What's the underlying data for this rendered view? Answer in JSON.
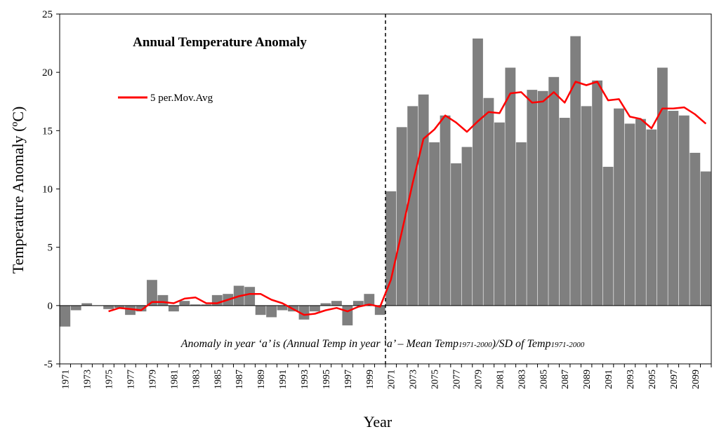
{
  "chart_data": {
    "type": "bar",
    "title": "Annual Temperature Anomaly",
    "xlabel": "Year",
    "ylabel": "Temperature Anomaly (ºC)",
    "ylim": [
      -5,
      25
    ],
    "yticks": [
      "-5",
      "0",
      "5",
      "10",
      "15",
      "20",
      "25"
    ],
    "bar_color": "#7f7f7f",
    "line_color": "#ff0000",
    "legend": {
      "label": "5 per.Mov.Avg",
      "placement": "top-left"
    },
    "divider_after_category": "2000",
    "annotation": {
      "prefix": "Anomaly in year ‘a’ is (Annual Temp in year ‘a’ – Mean Temp",
      "sub1": "1971-2000",
      "middle": ")/SD of Temp",
      "sub2": "1971-2000"
    },
    "categories": [
      "1971",
      "1972",
      "1973",
      "1974",
      "1975",
      "1976",
      "1977",
      "1978",
      "1979",
      "1980",
      "1981",
      "1982",
      "1983",
      "1984",
      "1985",
      "1986",
      "1987",
      "1988",
      "1989",
      "1990",
      "1991",
      "1992",
      "1993",
      "1994",
      "1995",
      "1996",
      "1997",
      "1998",
      "1999",
      "2000",
      "2071",
      "2072",
      "2073",
      "2074",
      "2075",
      "2076",
      "2077",
      "2078",
      "2079",
      "2080",
      "2081",
      "2082",
      "2083",
      "2084",
      "2085",
      "2086",
      "2087",
      "2088",
      "2089",
      "2090",
      "2091",
      "2092",
      "2093",
      "2094",
      "2095",
      "2096",
      "2097",
      "2098",
      "2099",
      "2100"
    ],
    "tick_labels": [
      "1971",
      "1973",
      "1975",
      "1977",
      "1979",
      "1981",
      "1983",
      "1985",
      "1987",
      "1989",
      "1991",
      "1993",
      "1995",
      "1997",
      "1999",
      "2071",
      "2073",
      "2075",
      "2077",
      "2079",
      "2081",
      "2083",
      "2085",
      "2087",
      "2089",
      "2091",
      "2093",
      "2095",
      "2097",
      "2099"
    ],
    "series": [
      {
        "name": "Annual Temperature Anomaly",
        "type": "bar",
        "values": [
          -1.8,
          -0.4,
          0.2,
          0.0,
          -0.3,
          -0.2,
          -0.8,
          -0.5,
          2.2,
          0.9,
          -0.5,
          0.4,
          0.1,
          0.1,
          0.9,
          1.0,
          1.7,
          1.6,
          -0.8,
          -1.0,
          -0.4,
          -0.5,
          -1.2,
          -0.5,
          0.2,
          0.4,
          -1.7,
          0.4,
          1.0,
          -0.8,
          9.8,
          15.3,
          17.1,
          18.1,
          14.0,
          16.3,
          12.2,
          13.6,
          22.9,
          17.8,
          15.7,
          20.4,
          14.0,
          18.5,
          18.4,
          19.6,
          16.1,
          23.1,
          17.1,
          19.3,
          11.9,
          16.9,
          15.6,
          16.0,
          15.1,
          20.4,
          16.7,
          16.3,
          13.1,
          11.5
        ]
      },
      {
        "name": "5 per.Mov.Avg",
        "type": "line",
        "values": [
          null,
          null,
          null,
          null,
          -0.5,
          -0.2,
          -0.3,
          -0.4,
          0.3,
          0.3,
          0.2,
          0.6,
          0.7,
          0.2,
          0.2,
          0.5,
          0.8,
          1.0,
          1.0,
          0.5,
          0.2,
          -0.3,
          -0.8,
          -0.7,
          -0.4,
          -0.2,
          -0.5,
          -0.1,
          0.1,
          -0.1,
          2.2,
          6.3,
          10.5,
          14.3,
          15.1,
          16.3,
          15.7,
          14.9,
          15.8,
          16.6,
          16.5,
          18.2,
          18.3,
          17.4,
          17.5,
          18.3,
          17.4,
          19.2,
          18.9,
          19.2,
          17.6,
          17.7,
          16.2,
          16.0,
          15.2,
          16.9,
          16.9,
          17.0,
          16.4,
          15.6
        ]
      }
    ]
  }
}
